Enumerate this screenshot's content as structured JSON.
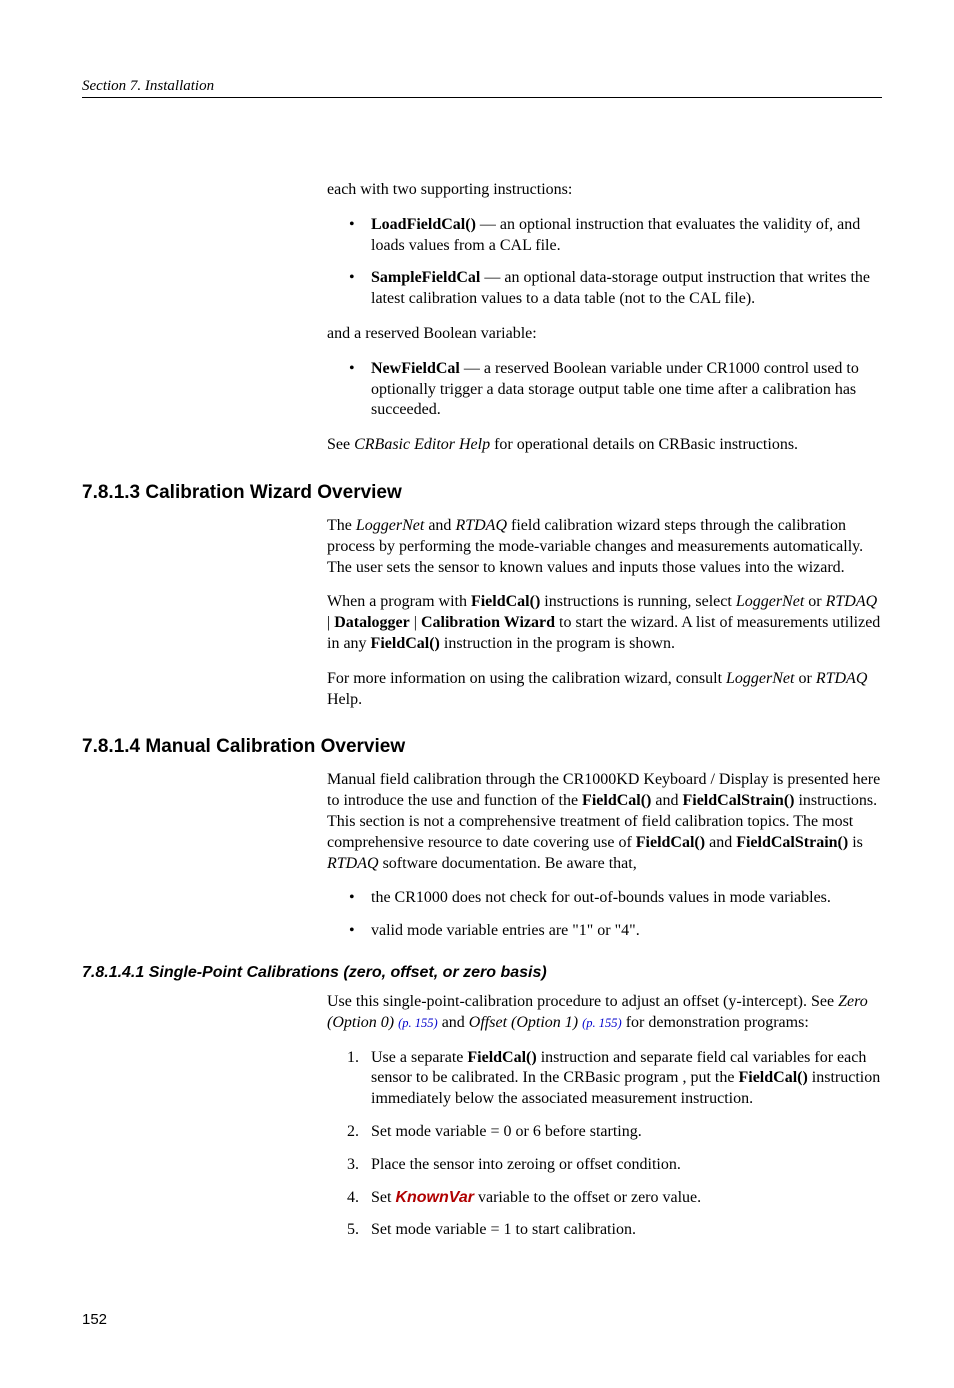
{
  "header": "Section 7.  Installation",
  "intro": "each with two supporting instructions:",
  "bullets1": {
    "b1_bold": "LoadFieldCal()",
    "b1_rest": " — an optional instruction that evaluates the validity of, and loads values from a CAL file.",
    "b2_bold": "SampleFieldCal",
    "b2_rest": " — an optional data-storage output instruction that writes the latest calibration values to a data table (not to the CAL file)."
  },
  "reserved_intro": "and a reserved Boolean variable:",
  "bullets2": {
    "b1_bold": "NewFieldCal",
    "b1_rest": " — a reserved Boolean variable under CR1000 control used to optionally trigger a data storage output table one time after a calibration has succeeded."
  },
  "see_pre": "See ",
  "see_italic": "CRBasic Editor Help",
  "see_post": " for operational details on CRBasic instructions.",
  "h7813": "7.8.1.3 Calibration Wizard Overview",
  "s7813": {
    "p1_pre": "The ",
    "p1_i1": "LoggerNet",
    "p1_mid": " and ",
    "p1_i2": "RTDAQ",
    "p1_post": " field calibration wizard steps through the calibration process by performing the mode-variable changes and measurements automatically. The user sets the sensor to known values and inputs those values into the wizard.",
    "p2_pre": "When a program with ",
    "p2_b1": "FieldCal()",
    "p2_mid1": " instructions is running, select ",
    "p2_i1": "LoggerNet",
    "p2_or": " or ",
    "p2_i2": "RTDAQ",
    "p2_pipe1": " | ",
    "p2_b2": "Datalogger",
    "p2_pipe2": " | ",
    "p2_b3": "Calibration Wizard",
    "p2_mid2": " to start the wizard. A list of measurements utilized in any ",
    "p2_b4": "FieldCal()",
    "p2_post": " instruction in the program is shown.",
    "p3_pre": "For more information on using the calibration wizard, consult ",
    "p3_i1": "LoggerNet",
    "p3_or": " or ",
    "p3_i2": "RTDAQ",
    "p3_post": " Help."
  },
  "h7814": "7.8.1.4 Manual Calibration Overview",
  "s7814": {
    "p1_pre": "Manual field calibration through the CR1000KD Keyboard / Display is presented here to introduce the use and function of the ",
    "p1_b1": "FieldCal()",
    "p1_mid1": " and ",
    "p1_b2": "FieldCalStrain()",
    "p1_mid2": " instructions.  This section is not a comprehensive treatment of field calibration topics. The most comprehensive resource to date covering use of ",
    "p1_b3": "FieldCal()",
    "p1_mid3": " and ",
    "p1_b4": "FieldCalStrain()",
    "p1_mid4": " is ",
    "p1_i1": "RTDAQ",
    "p1_post": " software documentation.  Be aware that,",
    "bul1": "the CR1000 does not check for out-of-bounds values in mode variables.",
    "bul2": "valid mode variable entries are \"1\" or \"4\"."
  },
  "h78141": "7.8.1.4.1 Single-Point Calibrations (zero, offset, or zero basis)",
  "s78141": {
    "p1_pre": "Use this single-point-calibration procedure to adjust an offset (y-intercept).  See ",
    "p1_i1": "Zero (Option 0) ",
    "p1_link1": "(p. 155)",
    "p1_mid": " and ",
    "p1_i2": "Offset (Option 1) ",
    "p1_link2": "(p. 155)",
    "p1_post": " for demonstration programs:",
    "n1_pre": "Use a separate ",
    "n1_b1": "FieldCal()",
    "n1_mid": " instruction and separate field cal variables for each sensor to be calibrated.  In the CRBasic program , put the ",
    "n1_b2": "FieldCal()",
    "n1_post": " instruction immediately below the associated measurement instruction.",
    "n2": "Set mode variable = 0 or 6 before starting.",
    "n3": "Place the sensor into zeroing or offset condition.",
    "n4_pre": "Set ",
    "n4_kw": "KnownVar",
    "n4_post": " variable to the offset or zero value.",
    "n5": "Set mode variable = 1 to start calibration."
  },
  "page_number": "152"
}
